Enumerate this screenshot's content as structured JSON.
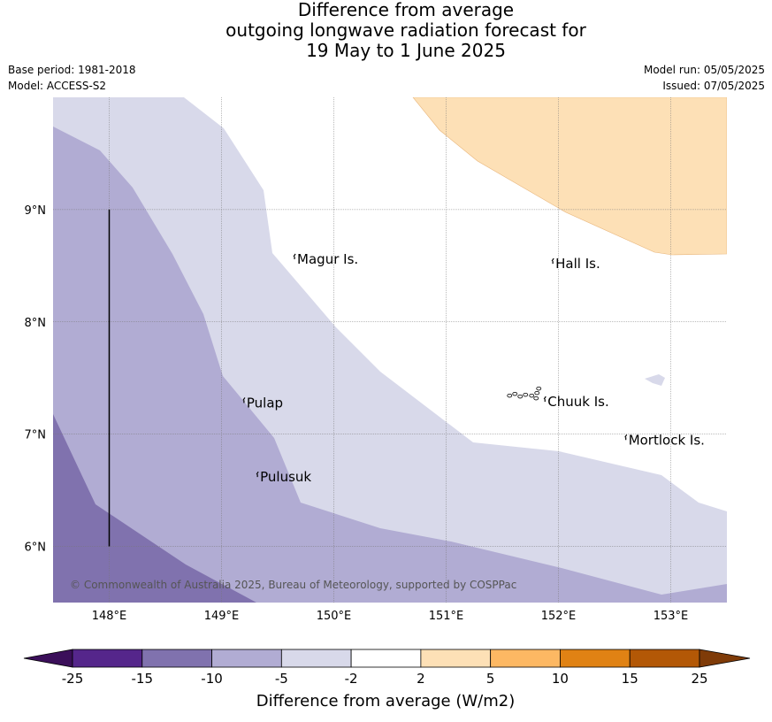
{
  "title": {
    "line1": "Difference from average",
    "line2": "outgoing longwave radiation forecast for",
    "line3": "19 May to 1 June 2025"
  },
  "meta_left": {
    "base_period": "Base period: 1981-2018",
    "model": "Model: ACCESS-S2"
  },
  "meta_right": {
    "model_run": "Model run: 05/05/2025",
    "issued": "Issued: 07/05/2025"
  },
  "map": {
    "lon_range": [
      147.5,
      153.5
    ],
    "lat_range": [
      5.5,
      10.0
    ],
    "lon_ticks": [
      {
        "lon": 148,
        "label": "148°E"
      },
      {
        "lon": 149,
        "label": "149°E"
      },
      {
        "lon": 150,
        "label": "150°E"
      },
      {
        "lon": 151,
        "label": "151°E"
      },
      {
        "lon": 152,
        "label": "152°E"
      },
      {
        "lon": 153,
        "label": "153°E"
      }
    ],
    "lat_ticks": [
      {
        "lat": 6,
        "label": "6°N"
      },
      {
        "lat": 7,
        "label": "7°N"
      },
      {
        "lat": 8,
        "label": "8°N"
      },
      {
        "lat": 9,
        "label": "9°N"
      }
    ],
    "gridlines": true,
    "island_labels": [
      {
        "name": "Magur Is.",
        "lon": 149.65,
        "lat": 8.55
      },
      {
        "name": "Hall Is.",
        "lon": 151.95,
        "lat": 8.51
      },
      {
        "name": "Pulap",
        "lon": 149.2,
        "lat": 7.27
      },
      {
        "name": "Chuuk Is.",
        "lon": 151.88,
        "lat": 7.28
      },
      {
        "name": "Mortlock Is.",
        "lon": 152.6,
        "lat": 6.94
      },
      {
        "name": "Pulusuk",
        "lon": 149.32,
        "lat": 6.61
      }
    ],
    "copyright": "© Commonwealth of Australia 2025, Bureau of Meteorology, supported by COSPPac",
    "regions": [
      {
        "category": "-15 to -10",
        "color": "#8072ae"
      },
      {
        "category": "-10 to -5",
        "color": "#b1acd3"
      },
      {
        "category": "-5 to -2",
        "color": "#d8d9ea"
      },
      {
        "category": "2 to 5",
        "color": "#fde0b6"
      }
    ],
    "vertical_line_lon": 148,
    "vertical_line_lat_range": [
      6,
      9
    ]
  },
  "colorbar": {
    "label": "Difference from average (W/m2)",
    "ticks": [
      "-25",
      "-15",
      "-10",
      "-5",
      "-2",
      "2",
      "5",
      "10",
      "15",
      "25"
    ],
    "colors": [
      "#3b0f5a",
      "#55268b",
      "#8072ae",
      "#b1acd3",
      "#d8d9ea",
      "#ffffff",
      "#fde0b6",
      "#fdb863",
      "#e08214",
      "#b35806",
      "#7f3b08"
    ],
    "extend": "both"
  }
}
